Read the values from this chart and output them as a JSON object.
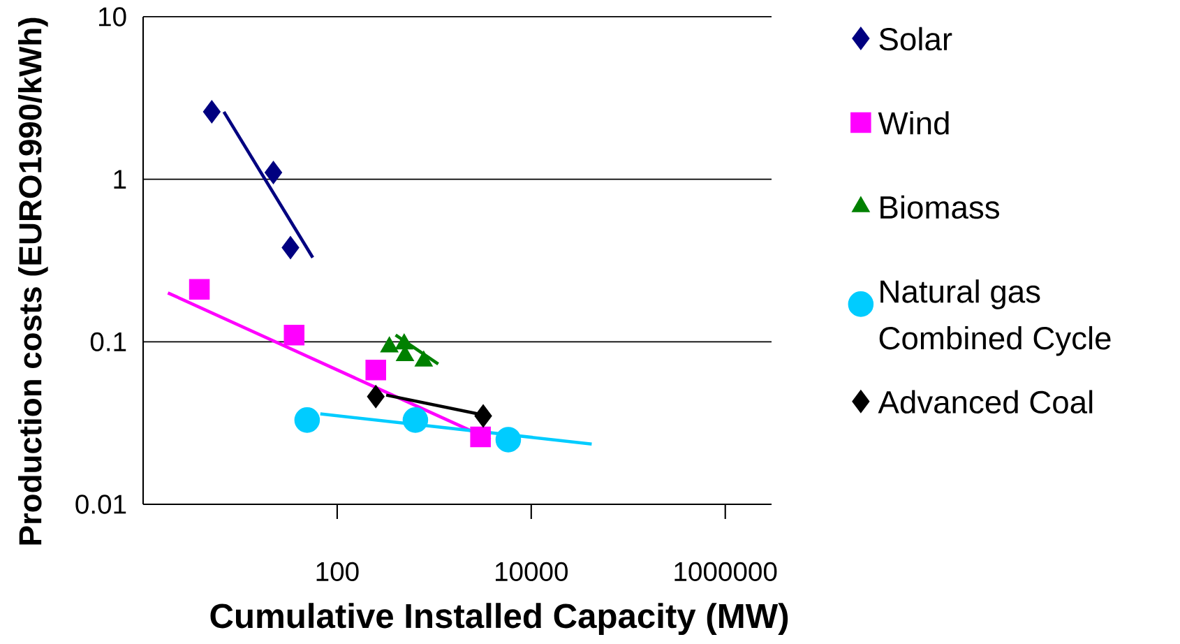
{
  "chart_data": {
    "type": "scatter",
    "xlabel": "Cumulative Installed Capacity (MW)",
    "ylabel": "Production costs (EURO1990/kWh)",
    "log": "xy",
    "xlim": [
      1,
      3000000
    ],
    "ylim": [
      0.01,
      10
    ],
    "xticks": [
      100,
      10000,
      1000000
    ],
    "yticks": [
      0.01,
      0.1,
      1,
      10
    ],
    "grid": "y",
    "legend": "right",
    "series": [
      {
        "name": "Solar",
        "color": "#000080",
        "marker": "diamond",
        "x": [
          5.1,
          22,
          33
        ],
        "values": [
          2.6,
          1.1,
          0.38
        ]
      },
      {
        "name": "Wind",
        "color": "#ff00ff",
        "marker": "square",
        "x": [
          3.8,
          36,
          250,
          3000
        ],
        "values": [
          0.21,
          0.11,
          0.067,
          0.026
        ]
      },
      {
        "name": "Biomass",
        "color": "#008000",
        "marker": "triangle",
        "x": [
          345,
          490,
          500,
          780
        ],
        "values": [
          0.093,
          0.097,
          0.082,
          0.076
        ]
      },
      {
        "name": "Natural gas Combined Cycle",
        "color": "#00ccff",
        "marker": "circle",
        "x": [
          49,
          640,
          5800
        ],
        "values": [
          0.033,
          0.033,
          0.025
        ]
      },
      {
        "name": "Advanced Coal",
        "color": "#000000",
        "marker": "diamond",
        "x": [
          250,
          3200
        ],
        "values": [
          0.046,
          0.035
        ]
      },
      {
        "type": "line",
        "color": "#000080",
        "marker": "none",
        "x": [
          6.8,
          56
        ],
        "values": [
          2.6,
          0.33
        ]
      },
      {
        "type": "line",
        "color": "#ff00ff",
        "marker": "none",
        "x": [
          1.8,
          3800
        ],
        "values": [
          0.2,
          0.025
        ]
      },
      {
        "type": "line",
        "color": "#008000",
        "marker": "none",
        "x": [
          400,
          1100
        ],
        "values": [
          0.11,
          0.073
        ]
      },
      {
        "type": "line",
        "color": "#00ccff",
        "marker": "none",
        "x": [
          67,
          42000
        ],
        "values": [
          0.036,
          0.0235
        ]
      },
      {
        "type": "line",
        "color": "#000000",
        "marker": "none",
        "x": [
          320,
          3600
        ],
        "values": [
          0.047,
          0.035
        ]
      }
    ]
  }
}
